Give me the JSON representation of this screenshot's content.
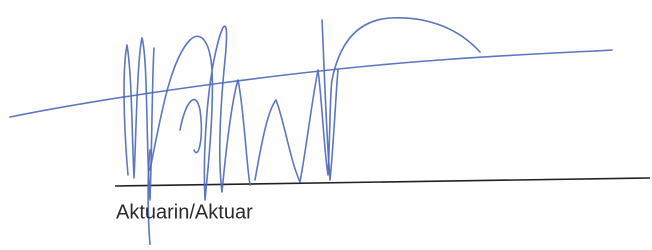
{
  "signature_label": "Aktuarin/Aktuar"
}
